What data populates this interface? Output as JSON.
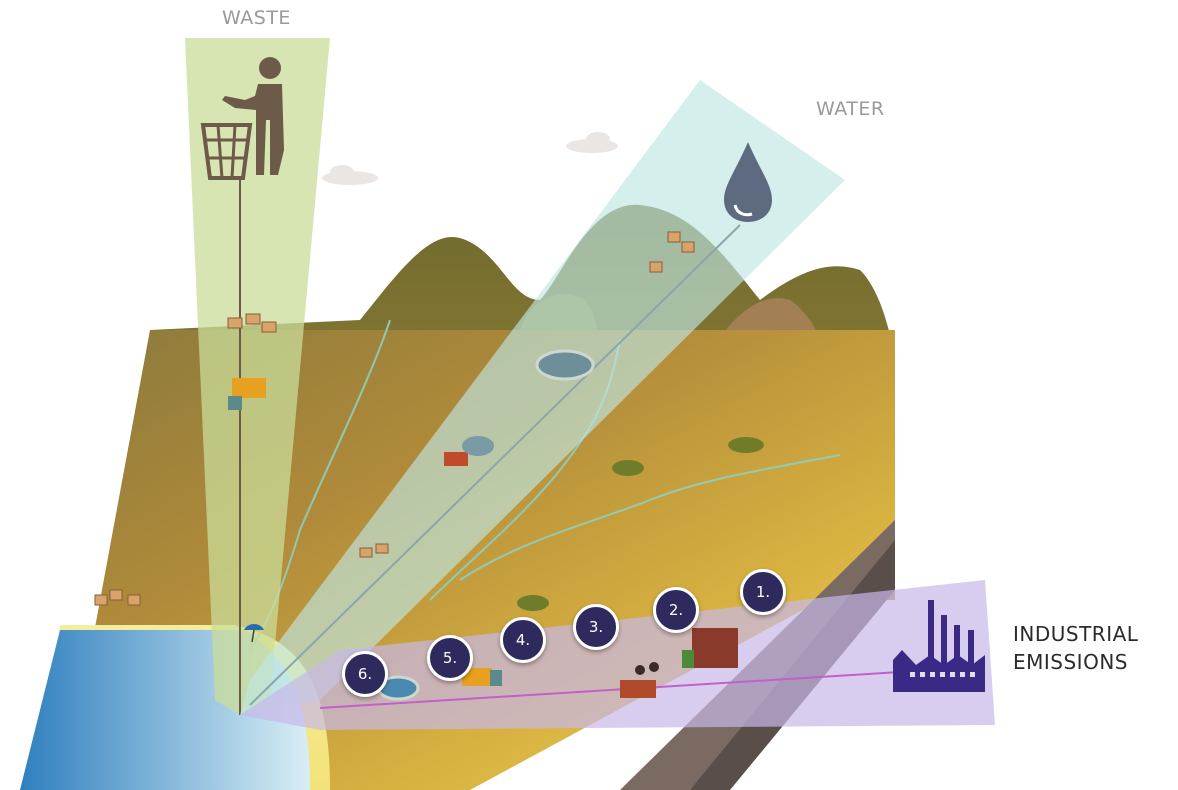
{
  "labels": {
    "waste": "WASTE",
    "water": "WATER",
    "industrial_line1": "INDUSTRIAL",
    "industrial_line2": "EMISSIONS"
  },
  "markers": [
    "1.",
    "2.",
    "3.",
    "4.",
    "5.",
    "6."
  ],
  "colors": {
    "waste_beam": "#c9dc9a",
    "water_beam": "#bfe6e2",
    "industrial_beam": "#c8b8e8",
    "marker_fill": "#2f2a5e",
    "factory_icon": "#3a2a86",
    "water_drop": "#5d6a80",
    "bin_person_icon": "#6e5a48"
  },
  "icons": [
    "trash-person-icon",
    "water-drop-icon",
    "factory-icon"
  ]
}
